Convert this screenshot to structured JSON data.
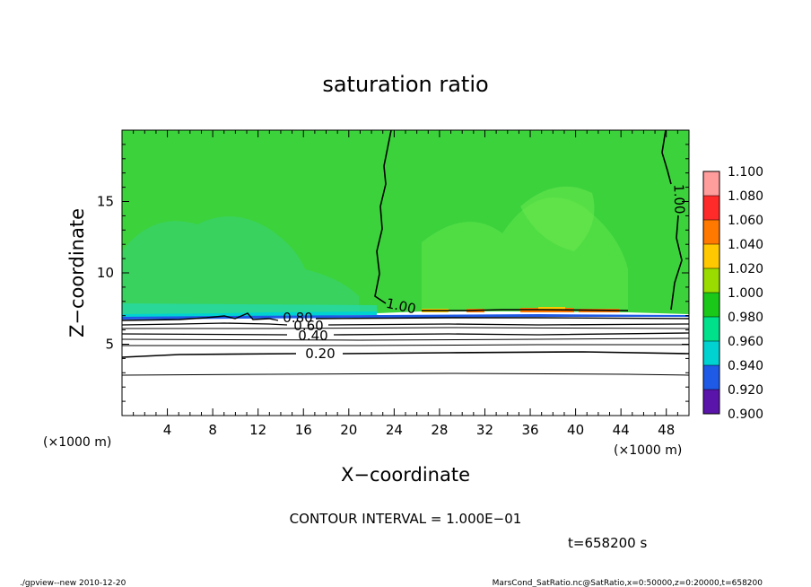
{
  "chart_data": {
    "type": "heatmap",
    "title": "saturation ratio",
    "xlabel": "X−coordinate",
    "ylabel": "Z−coordinate",
    "x_unit_left": "(×1000 m)",
    "x_unit_right": "(×1000 m)",
    "xlim": [
      0,
      50
    ],
    "ylim": [
      0,
      20
    ],
    "xticks": [
      4,
      8,
      12,
      16,
      20,
      24,
      28,
      32,
      36,
      40,
      44,
      48
    ],
    "yticks": [
      5,
      10,
      15
    ],
    "colorbar": {
      "levels": [
        "1.100",
        "1.080",
        "1.060",
        "1.040",
        "1.020",
        "1.000",
        "0.980",
        "0.960",
        "0.940",
        "0.920",
        "0.900"
      ],
      "colors": [
        "#ff9c9c",
        "#ff2a2a",
        "#ff7800",
        "#ffc800",
        "#9bdc00",
        "#19c819",
        "#00e18c",
        "#00d2d2",
        "#1e5ae6",
        "#0000aa",
        "#5a14aa"
      ]
    },
    "field_colors": {
      "main": "#3cd23c",
      "light": "#6ee650",
      "teal": "#32d28c",
      "below": "#ffffff"
    },
    "contours": [
      {
        "level": "1.00",
        "label": "1.00"
      },
      {
        "level": "0.80",
        "label": "0.80"
      },
      {
        "level": "0.60",
        "label": "0.60"
      },
      {
        "level": "0.40",
        "label": "0.40"
      },
      {
        "level": "0.20",
        "label": "0.20"
      }
    ],
    "contour_interval": "CONTOUR INTERVAL = 1.000E−01",
    "time_label": "t=658200 s",
    "footer_left": "./gpview--new   2010-12-20",
    "footer_right": "MarsCond_SatRatio.nc@SatRatio,x=0:50000,z=0:20000,t=658200"
  }
}
